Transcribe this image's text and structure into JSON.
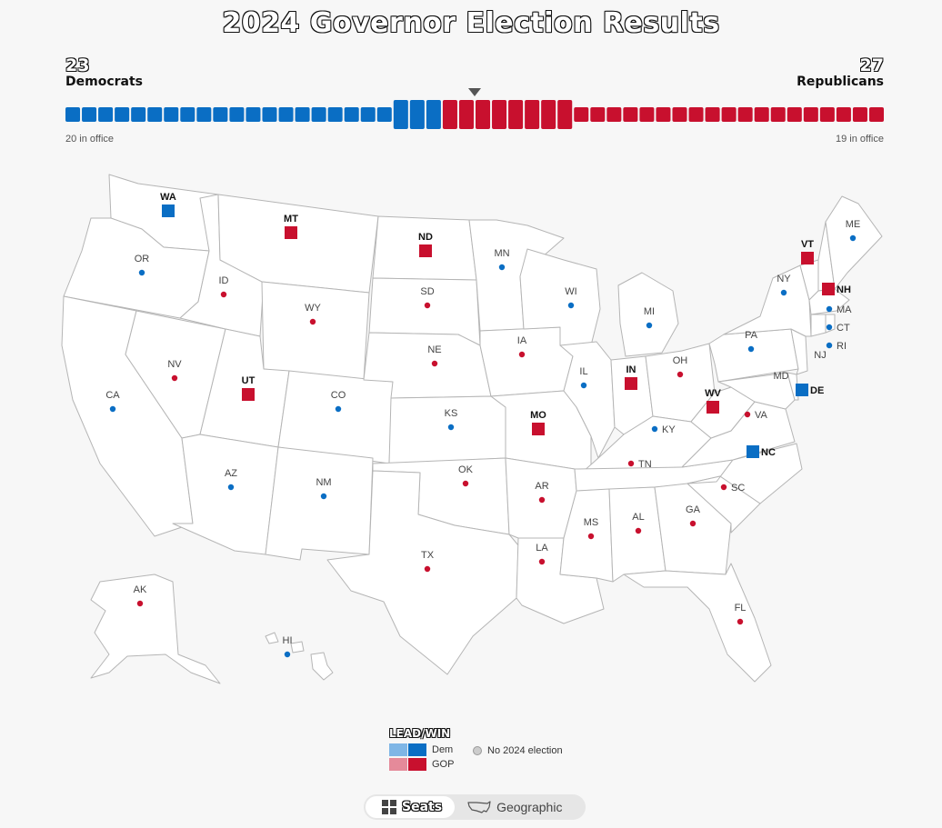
{
  "title": "2024 Governor Election Results",
  "dem": {
    "count": "23",
    "party": "Democrats",
    "in_office": "20 in office",
    "total": 23,
    "in_office_n": 20,
    "color": "#0a6ec4"
  },
  "gop": {
    "count": "27",
    "party": "Republicans",
    "in_office": "19 in office",
    "total": 27,
    "in_office_n": 19,
    "color": "#c8102e"
  },
  "states": [
    {
      "abbr": "WA",
      "party": "D",
      "race": true
    },
    {
      "abbr": "OR",
      "party": "D",
      "race": false
    },
    {
      "abbr": "CA",
      "party": "D",
      "race": false
    },
    {
      "abbr": "NV",
      "party": "R",
      "race": false
    },
    {
      "abbr": "ID",
      "party": "R",
      "race": false
    },
    {
      "abbr": "MT",
      "party": "R",
      "race": true
    },
    {
      "abbr": "WY",
      "party": "R",
      "race": false
    },
    {
      "abbr": "UT",
      "party": "R",
      "race": true
    },
    {
      "abbr": "AZ",
      "party": "D",
      "race": false
    },
    {
      "abbr": "CO",
      "party": "D",
      "race": false
    },
    {
      "abbr": "NM",
      "party": "D",
      "race": false
    },
    {
      "abbr": "ND",
      "party": "R",
      "race": true
    },
    {
      "abbr": "SD",
      "party": "R",
      "race": false
    },
    {
      "abbr": "NE",
      "party": "R",
      "race": false
    },
    {
      "abbr": "KS",
      "party": "D",
      "race": false
    },
    {
      "abbr": "OK",
      "party": "R",
      "race": false
    },
    {
      "abbr": "TX",
      "party": "R",
      "race": false
    },
    {
      "abbr": "MN",
      "party": "D",
      "race": false
    },
    {
      "abbr": "IA",
      "party": "R",
      "race": false
    },
    {
      "abbr": "MO",
      "party": "R",
      "race": true
    },
    {
      "abbr": "AR",
      "party": "R",
      "race": false
    },
    {
      "abbr": "LA",
      "party": "R",
      "race": false
    },
    {
      "abbr": "WI",
      "party": "D",
      "race": false
    },
    {
      "abbr": "IL",
      "party": "D",
      "race": false
    },
    {
      "abbr": "MS",
      "party": "R",
      "race": false
    },
    {
      "abbr": "MI",
      "party": "D",
      "race": false
    },
    {
      "abbr": "IN",
      "party": "R",
      "race": true
    },
    {
      "abbr": "KY",
      "party": "D",
      "race": false
    },
    {
      "abbr": "TN",
      "party": "R",
      "race": false
    },
    {
      "abbr": "AL",
      "party": "R",
      "race": false
    },
    {
      "abbr": "GA",
      "party": "R",
      "race": false
    },
    {
      "abbr": "FL",
      "party": "R",
      "race": false
    },
    {
      "abbr": "OH",
      "party": "R",
      "race": false
    },
    {
      "abbr": "WV",
      "party": "R",
      "race": true
    },
    {
      "abbr": "VA",
      "party": "R",
      "race": false
    },
    {
      "abbr": "NC",
      "party": "D",
      "race": true
    },
    {
      "abbr": "SC",
      "party": "R",
      "race": false
    },
    {
      "abbr": "PA",
      "party": "D",
      "race": false
    },
    {
      "abbr": "NY",
      "party": "D",
      "race": false
    },
    {
      "abbr": "VT",
      "party": "R",
      "race": true
    },
    {
      "abbr": "NH",
      "party": "R",
      "race": true
    },
    {
      "abbr": "ME",
      "party": "D",
      "race": false
    },
    {
      "abbr": "MA",
      "party": "D",
      "race": false
    },
    {
      "abbr": "CT",
      "party": "D",
      "race": false
    },
    {
      "abbr": "RI",
      "party": "D",
      "race": false
    },
    {
      "abbr": "NJ",
      "party": "none",
      "race": false
    },
    {
      "abbr": "DE",
      "party": "D",
      "race": true
    },
    {
      "abbr": "MD",
      "party": "none",
      "race": false
    },
    {
      "abbr": "AK",
      "party": "R",
      "race": false
    },
    {
      "abbr": "HI",
      "party": "D",
      "race": false
    }
  ],
  "legend": {
    "title": "LEAD/WIN",
    "dem_label": "Dem",
    "gop_label": "GOP",
    "no_election": "No 2024 election",
    "dem_lead_color": "#7fb6e6",
    "gop_lead_color": "#e58a9a"
  },
  "toggle": {
    "seats_label": "Seats",
    "geo_label": "Geographic",
    "active": "seats"
  }
}
